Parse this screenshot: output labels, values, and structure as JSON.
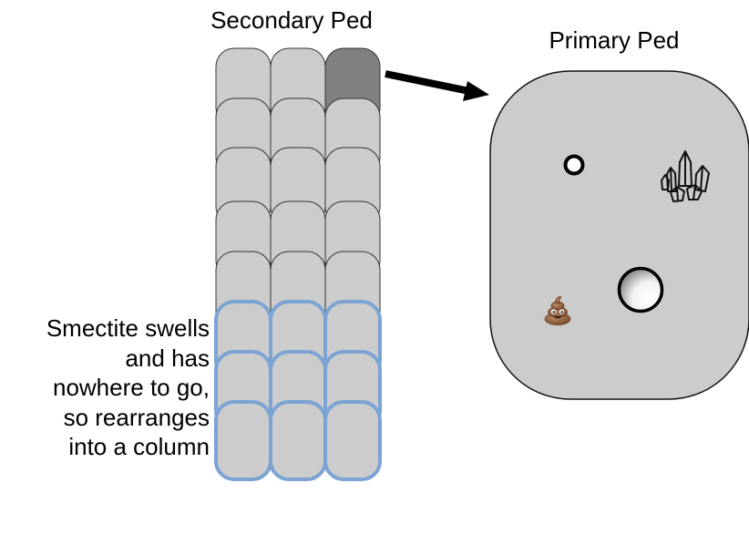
{
  "secondary_ped": {
    "title": "Secondary Ped",
    "columns": 3,
    "rows": 8,
    "swollen_rows": 3,
    "highlighted_cell": {
      "row": 0,
      "col": 2
    }
  },
  "primary_ped": {
    "title": "Primary Ped"
  },
  "caption": {
    "lines": [
      "Smectite swells",
      "and has",
      "nowhere to go,",
      "so rearranges",
      "into a column"
    ]
  },
  "colors": {
    "cell_fill": "#cccccc",
    "cell_stroke": "#333333",
    "swollen_stroke": "#7ba3d4",
    "highlight_fill": "#808080",
    "primary_fill": "#cccccc",
    "primary_stroke": "#111111",
    "arrow": "#000000"
  },
  "icons": {
    "small_pore": "ring-icon",
    "crystal": "crystal-cluster-icon",
    "large_pore": "void-icon",
    "organic": "poop-emoji-icon"
  }
}
